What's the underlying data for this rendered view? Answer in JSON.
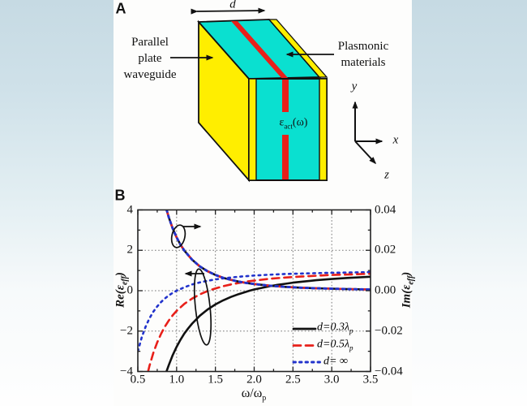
{
  "colors": {
    "plate_yellow": "#ffee00",
    "plasmonic_cyan": "#0ae0d0",
    "stripe_red": "#e8201a",
    "curve_black": "#111111",
    "curve_red": "#e8201a",
    "curve_blue": "#2233cc",
    "background_top": "#c6dae3",
    "panel_white": "#fdfdfc"
  },
  "panel_a": {
    "label": "A",
    "dimension_label": "d",
    "left_caption_lines": [
      "Parallel",
      "plate",
      "waveguide"
    ],
    "right_caption_lines": [
      "Plasmonic",
      "materials"
    ],
    "epsilon_label": {
      "pre": "ε",
      "sub": "act",
      "post": "(ω)"
    },
    "axes": {
      "x": "x",
      "y": "y",
      "z": "z"
    }
  },
  "panel_b": {
    "label": "B",
    "chart_data": {
      "type": "line",
      "xlabel": {
        "pre": "ω/ω",
        "sub": "p"
      },
      "xlim": [
        0.5,
        3.5
      ],
      "x_ticks": [
        "0.5",
        "1.0",
        "1.5",
        "2.0",
        "2.5",
        "3.0",
        "3.5"
      ],
      "x_tick_values": [
        0.5,
        1.0,
        1.5,
        2.0,
        2.5,
        3.0,
        3.5
      ],
      "left_axis": {
        "label": {
          "pre": "Re(ε",
          "sub": "eff",
          "post": ")"
        },
        "ylim": [
          -4,
          4
        ],
        "ticks": [
          "4",
          "2",
          "0",
          "−2",
          "−4"
        ],
        "tick_values": [
          4,
          2,
          0,
          -2,
          -4
        ]
      },
      "right_axis": {
        "label": {
          "pre": "Im(ε",
          "sub": "eff",
          "post": ")"
        },
        "ylim": [
          -0.04,
          0.04
        ],
        "ticks": [
          "0.04",
          "0.02",
          "0.00",
          "−0.02",
          "−0.04"
        ],
        "tick_values": [
          0.04,
          0.02,
          0.0,
          -0.02,
          -0.04
        ]
      },
      "grid": {
        "x_values": [
          1.0,
          1.5,
          2.0,
          2.5,
          3.0
        ],
        "y_values": [
          2,
          0,
          -2
        ],
        "style": "dotted"
      },
      "legend": {
        "position": "lower right",
        "entries": [
          {
            "style": "solid",
            "color": "#111111",
            "pre": "d=0.3λ",
            "sub": "p"
          },
          {
            "style": "dashed",
            "color": "#e8201a",
            "pre": "d=0.5λ",
            "sub": "p"
          },
          {
            "style": "dotted",
            "color": "#2233cc",
            "pre": "d= ∞",
            "sub": ""
          }
        ]
      },
      "series": [
        {
          "name": "Re(eps_eff), d=0.3*lambda_p",
          "axis": "left",
          "style": "solid",
          "color": "#111111",
          "points": [
            [
              0.87,
              -3.99
            ],
            [
              0.9,
              -3.67
            ],
            [
              0.95,
              -3.19
            ],
            [
              1.0,
              -2.78
            ],
            [
              1.05,
              -2.43
            ],
            [
              1.1,
              -2.12
            ],
            [
              1.15,
              -1.86
            ],
            [
              1.2,
              -1.63
            ],
            [
              1.3,
              -1.24
            ],
            [
              1.4,
              -0.93
            ],
            [
              1.5,
              -0.68
            ],
            [
              1.6,
              -0.48
            ],
            [
              1.7,
              -0.31
            ],
            [
              1.8,
              -0.17
            ],
            [
              1.9,
              -0.05
            ],
            [
              1.94,
              0.0
            ],
            [
              2.0,
              0.06
            ],
            [
              2.1,
              0.14
            ],
            [
              2.2,
              0.22
            ],
            [
              2.3,
              0.29
            ],
            [
              2.4,
              0.34
            ],
            [
              2.5,
              0.4
            ],
            [
              2.6,
              0.44
            ],
            [
              2.8,
              0.52
            ],
            [
              3.0,
              0.58
            ],
            [
              3.2,
              0.63
            ],
            [
              3.5,
              0.69
            ]
          ]
        },
        {
          "name": "Re(eps_eff), d=0.5*lambda_p",
          "axis": "left",
          "style": "dashed",
          "color": "#e8201a",
          "points": [
            [
              0.633,
              -3.99
            ],
            [
              0.65,
              -3.73
            ],
            [
              0.7,
              -3.08
            ],
            [
              0.75,
              -2.56
            ],
            [
              0.8,
              -2.13
            ],
            [
              0.85,
              -1.77
            ],
            [
              0.9,
              -1.47
            ],
            [
              0.95,
              -1.22
            ],
            [
              1.0,
              -1.0
            ],
            [
              1.1,
              -0.65
            ],
            [
              1.2,
              -0.39
            ],
            [
              1.3,
              -0.18
            ],
            [
              1.41,
              0.0
            ],
            [
              1.5,
              0.11
            ],
            [
              1.6,
              0.22
            ],
            [
              1.7,
              0.31
            ],
            [
              1.8,
              0.38
            ],
            [
              1.9,
              0.45
            ],
            [
              2.0,
              0.5
            ],
            [
              2.2,
              0.59
            ],
            [
              2.4,
              0.65
            ],
            [
              2.6,
              0.7
            ],
            [
              2.8,
              0.74
            ],
            [
              3.0,
              0.78
            ],
            [
              3.2,
              0.8
            ],
            [
              3.5,
              0.84
            ]
          ]
        },
        {
          "name": "Re(eps_eff), d=infinity",
          "axis": "left",
          "style": "dotted",
          "color": "#2233cc",
          "points": [
            [
              0.5,
              -3.0
            ],
            [
              0.55,
              -2.31
            ],
            [
              0.6,
              -1.78
            ],
            [
              0.65,
              -1.37
            ],
            [
              0.7,
              -1.04
            ],
            [
              0.75,
              -0.78
            ],
            [
              0.8,
              -0.56
            ],
            [
              0.85,
              -0.38
            ],
            [
              0.9,
              -0.23
            ],
            [
              0.95,
              -0.11
            ],
            [
              1.0,
              0.0
            ],
            [
              1.1,
              0.17
            ],
            [
              1.2,
              0.31
            ],
            [
              1.3,
              0.41
            ],
            [
              1.4,
              0.49
            ],
            [
              1.5,
              0.56
            ],
            [
              1.6,
              0.61
            ],
            [
              1.7,
              0.65
            ],
            [
              1.8,
              0.69
            ],
            [
              1.9,
              0.72
            ],
            [
              2.0,
              0.75
            ],
            [
              2.2,
              0.79
            ],
            [
              2.4,
              0.83
            ],
            [
              2.6,
              0.85
            ],
            [
              2.8,
              0.87
            ],
            [
              3.0,
              0.89
            ],
            [
              3.2,
              0.9
            ],
            [
              3.5,
              0.92
            ]
          ]
        },
        {
          "name": "Im(eps_eff), all three d (curves overlap)",
          "axis": "right",
          "style": "overlap",
          "color": "#111111",
          "points": [
            [
              0.871,
              0.04
            ],
            [
              0.9,
              0.0362
            ],
            [
              0.95,
              0.0308
            ],
            [
              1.0,
              0.0264
            ],
            [
              1.05,
              0.0228
            ],
            [
              1.1,
              0.0198
            ],
            [
              1.2,
              0.0153
            ],
            [
              1.3,
              0.012
            ],
            [
              1.4,
              0.0096
            ],
            [
              1.5,
              0.0078
            ],
            [
              1.6,
              0.0064
            ],
            [
              1.7,
              0.0054
            ],
            [
              1.8,
              0.0045
            ],
            [
              1.9,
              0.0038
            ],
            [
              2.0,
              0.0033
            ],
            [
              2.2,
              0.0025
            ],
            [
              2.4,
              0.0019
            ],
            [
              2.6,
              0.0015
            ],
            [
              2.8,
              0.0012
            ],
            [
              3.0,
              0.001
            ],
            [
              3.2,
              0.0008
            ],
            [
              3.5,
              0.0006
            ]
          ]
        }
      ],
      "annotations": [
        {
          "type": "ellipse-arrow",
          "target": "Im curves (steep descending bundle)",
          "arrow_direction": "right"
        },
        {
          "type": "ellipse-arrow",
          "target": "Re curves (rising bundle)",
          "arrow_direction": "left"
        }
      ]
    }
  }
}
